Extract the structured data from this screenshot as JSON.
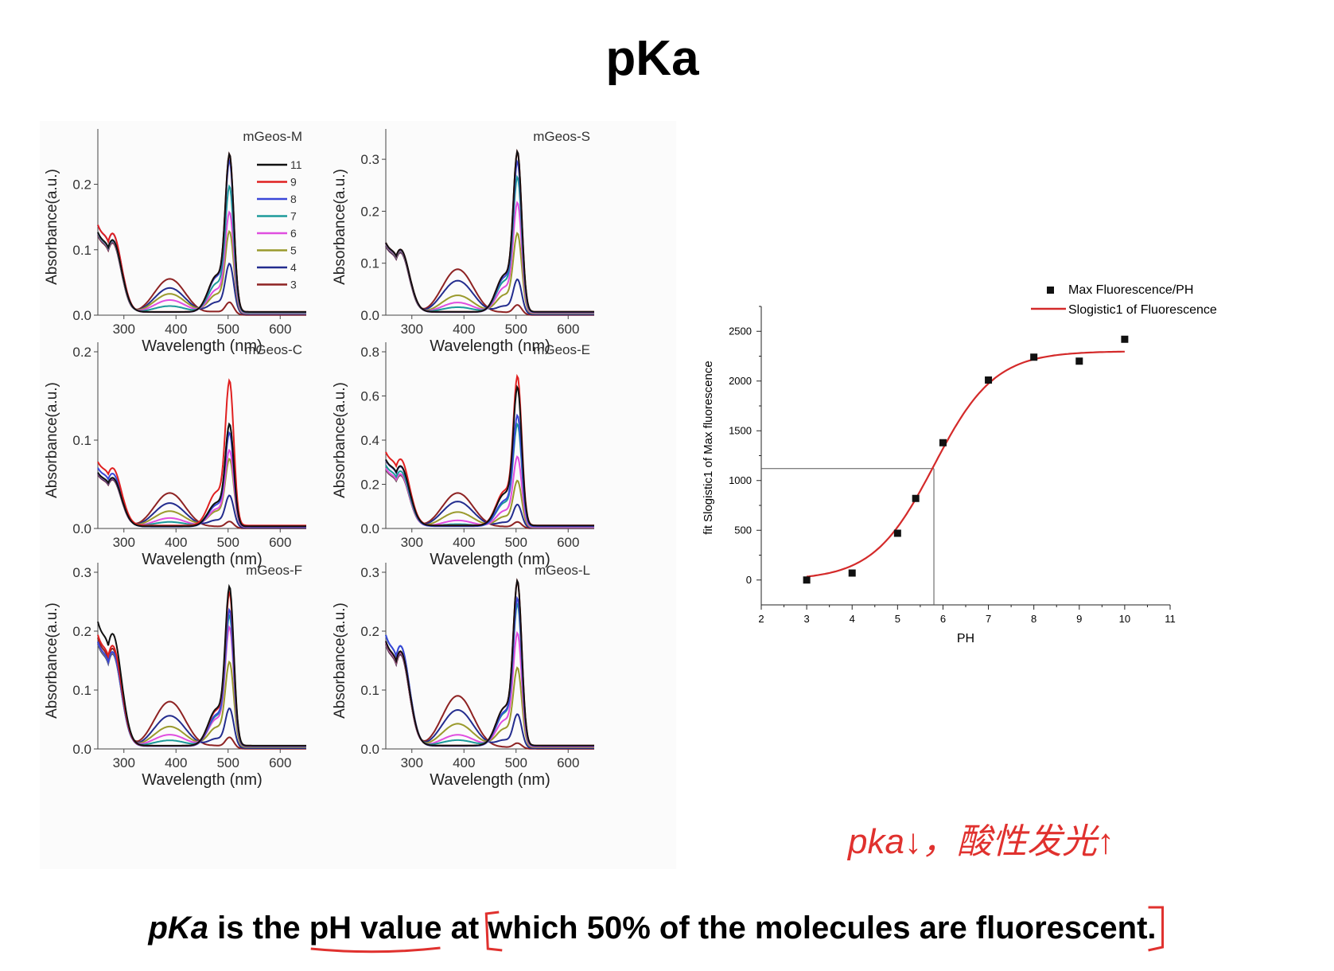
{
  "slide": {
    "title": "pKa",
    "caption": {
      "term": "pKa",
      "part1": " is the ",
      "highlight": "pH value",
      "part2": " at ",
      "rest": "which 50% of the molecules are fluorescent."
    },
    "handwritten_note": "pka↓，酸性发光↑",
    "annotation_color": "#e0312e"
  },
  "spectra_legend": {
    "labels": [
      "11",
      "9",
      "8",
      "7",
      "6",
      "5",
      "4",
      "3"
    ],
    "colors": [
      "#111111",
      "#e02020",
      "#3a46d8",
      "#1c9a9a",
      "#e04ee0",
      "#9a9a2c",
      "#232c8e",
      "#8e2222"
    ]
  },
  "chart_data": [
    {
      "type": "line",
      "title": "mGeos-M",
      "xlabel": "Wavelength (nm)",
      "ylabel": "Absorbance(a.u.)",
      "xlim": [
        250,
        650
      ],
      "ylim": [
        0,
        0.27
      ],
      "xticks": [
        300,
        400,
        500,
        600
      ],
      "yticks": [
        0.0,
        0.1,
        0.2
      ],
      "ytick_labels": [
        "0.0",
        "0.1",
        "0.2"
      ],
      "series": [
        {
          "name": "11",
          "peak_uv": 0.11,
          "peak_390": 0.0,
          "peak_505": 0.25
        },
        {
          "name": "9",
          "peak_uv": 0.12,
          "peak_390": 0.0,
          "peak_505": 0.25
        },
        {
          "name": "8",
          "peak_uv": 0.12,
          "peak_390": 0.0,
          "peak_505": 0.24
        },
        {
          "name": "7",
          "peak_uv": 0.11,
          "peak_390": 0.01,
          "peak_505": 0.2
        },
        {
          "name": "6",
          "peak_uv": 0.11,
          "peak_390": 0.02,
          "peak_505": 0.16
        },
        {
          "name": "5",
          "peak_uv": 0.11,
          "peak_390": 0.03,
          "peak_505": 0.13
        },
        {
          "name": "4",
          "peak_uv": 0.11,
          "peak_390": 0.04,
          "peak_505": 0.08
        },
        {
          "name": "3",
          "peak_uv": 0.11,
          "peak_390": 0.055,
          "peak_505": 0.02
        }
      ]
    },
    {
      "type": "line",
      "title": "mGeos-S",
      "xlabel": "Wavelength (nm)",
      "ylabel": "Absorbance(a.u.)",
      "xlim": [
        250,
        650
      ],
      "ylim": [
        0,
        0.34
      ],
      "xticks": [
        300,
        400,
        500,
        600
      ],
      "yticks": [
        0.0,
        0.1,
        0.2,
        0.3
      ],
      "ytick_labels": [
        "0.0",
        "0.1",
        "0.2",
        "0.3"
      ],
      "series": [
        {
          "name": "11",
          "peak_uv": 0.12,
          "peak_390": 0.0,
          "peak_505": 0.32
        },
        {
          "name": "9",
          "peak_uv": 0.12,
          "peak_390": 0.0,
          "peak_505": 0.32
        },
        {
          "name": "8",
          "peak_uv": 0.12,
          "peak_390": 0.0,
          "peak_505": 0.3
        },
        {
          "name": "7",
          "peak_uv": 0.12,
          "peak_390": 0.01,
          "peak_505": 0.27
        },
        {
          "name": "6",
          "peak_uv": 0.12,
          "peak_390": 0.02,
          "peak_505": 0.22
        },
        {
          "name": "5",
          "peak_uv": 0.12,
          "peak_390": 0.035,
          "peak_505": 0.16
        },
        {
          "name": "4",
          "peak_uv": 0.12,
          "peak_390": 0.065,
          "peak_505": 0.07
        },
        {
          "name": "3",
          "peak_uv": 0.12,
          "peak_390": 0.088,
          "peak_505": 0.02
        }
      ]
    },
    {
      "type": "line",
      "title": "mGeos-C",
      "xlabel": "Wavelength (nm)",
      "ylabel": "Absorbance(a.u.)",
      "xlim": [
        250,
        650
      ],
      "ylim": [
        0,
        0.2
      ],
      "xticks": [
        300,
        400,
        500,
        600
      ],
      "yticks": [
        0.0,
        0.1,
        0.2
      ],
      "ytick_labels": [
        "0.0",
        "0.1",
        "0.2"
      ],
      "series": [
        {
          "name": "11",
          "peak_uv": 0.055,
          "peak_390": 0.0,
          "peak_505": 0.12
        },
        {
          "name": "9",
          "peak_uv": 0.065,
          "peak_390": 0.0,
          "peak_505": 0.17
        },
        {
          "name": "8",
          "peak_uv": 0.06,
          "peak_390": 0.0,
          "peak_505": 0.11
        },
        {
          "name": "7",
          "peak_uv": 0.055,
          "peak_390": 0.005,
          "peak_505": 0.12
        },
        {
          "name": "6",
          "peak_uv": 0.055,
          "peak_390": 0.01,
          "peak_505": 0.09
        },
        {
          "name": "5",
          "peak_uv": 0.055,
          "peak_390": 0.018,
          "peak_505": 0.08
        },
        {
          "name": "4",
          "peak_uv": 0.055,
          "peak_390": 0.028,
          "peak_505": 0.038
        },
        {
          "name": "3",
          "peak_uv": 0.055,
          "peak_390": 0.04,
          "peak_505": 0.008
        }
      ]
    },
    {
      "type": "line",
      "title": "mGeos-E",
      "xlabel": "Wavelength (nm)",
      "ylabel": "Absorbance(a.u.)",
      "xlim": [
        250,
        650
      ],
      "ylim": [
        0,
        0.8
      ],
      "xticks": [
        300,
        400,
        500,
        600
      ],
      "yticks": [
        0.0,
        0.2,
        0.4,
        0.6,
        0.8
      ],
      "ytick_labels": [
        "0.0",
        "0.2",
        "0.4",
        "0.6",
        "0.8"
      ],
      "series": [
        {
          "name": "11",
          "peak_uv": 0.27,
          "peak_390": 0.0,
          "peak_505": 0.65
        },
        {
          "name": "9",
          "peak_uv": 0.3,
          "peak_390": 0.0,
          "peak_505": 0.7
        },
        {
          "name": "8",
          "peak_uv": 0.27,
          "peak_390": 0.0,
          "peak_505": 0.52
        },
        {
          "name": "7",
          "peak_uv": 0.25,
          "peak_390": 0.01,
          "peak_505": 0.48
        },
        {
          "name": "6",
          "peak_uv": 0.24,
          "peak_390": 0.03,
          "peak_505": 0.33
        },
        {
          "name": "5",
          "peak_uv": 0.24,
          "peak_390": 0.07,
          "peak_505": 0.22
        },
        {
          "name": "4",
          "peak_uv": 0.24,
          "peak_390": 0.12,
          "peak_505": 0.11
        },
        {
          "name": "3",
          "peak_uv": 0.24,
          "peak_390": 0.16,
          "peak_505": 0.03
        }
      ]
    },
    {
      "type": "line",
      "title": "mGeos-F",
      "xlabel": "Wavelength (nm)",
      "ylabel": "Absorbance(a.u.)",
      "xlim": [
        250,
        650
      ],
      "ylim": [
        0,
        0.3
      ],
      "xticks": [
        300,
        400,
        500,
        600
      ],
      "yticks": [
        0.0,
        0.1,
        0.2,
        0.3
      ],
      "ytick_labels": [
        "0.0",
        "0.1",
        "0.2",
        "0.3"
      ],
      "series": [
        {
          "name": "11",
          "peak_uv": 0.19,
          "peak_390": 0.0,
          "peak_505": 0.28
        },
        {
          "name": "9",
          "peak_uv": 0.17,
          "peak_390": 0.0,
          "peak_505": 0.27
        },
        {
          "name": "8",
          "peak_uv": 0.16,
          "peak_390": 0.0,
          "peak_505": 0.24
        },
        {
          "name": "7",
          "peak_uv": 0.16,
          "peak_390": 0.01,
          "peak_505": 0.23
        },
        {
          "name": "6",
          "peak_uv": 0.16,
          "peak_390": 0.02,
          "peak_505": 0.21
        },
        {
          "name": "5",
          "peak_uv": 0.16,
          "peak_390": 0.035,
          "peak_505": 0.15
        },
        {
          "name": "4",
          "peak_uv": 0.16,
          "peak_390": 0.055,
          "peak_505": 0.07
        },
        {
          "name": "3",
          "peak_uv": 0.17,
          "peak_390": 0.08,
          "peak_505": 0.02
        }
      ]
    },
    {
      "type": "line",
      "title": "mGeos-L",
      "xlabel": "Wavelength (nm)",
      "ylabel": "Absorbance(a.u.)",
      "xlim": [
        250,
        650
      ],
      "ylim": [
        0,
        0.3
      ],
      "xticks": [
        300,
        400,
        500,
        600
      ],
      "yticks": [
        0.0,
        0.1,
        0.2,
        0.3
      ],
      "ytick_labels": [
        "0.0",
        "0.1",
        "0.2",
        "0.3"
      ],
      "series": [
        {
          "name": "11",
          "peak_uv": 0.16,
          "peak_390": 0.0,
          "peak_505": 0.29
        },
        {
          "name": "9",
          "peak_uv": 0.16,
          "peak_390": 0.0,
          "peak_505": 0.29
        },
        {
          "name": "8",
          "peak_uv": 0.17,
          "peak_390": 0.0,
          "peak_505": 0.26
        },
        {
          "name": "7",
          "peak_uv": 0.17,
          "peak_390": 0.01,
          "peak_505": 0.25
        },
        {
          "name": "6",
          "peak_uv": 0.16,
          "peak_390": 0.02,
          "peak_505": 0.2
        },
        {
          "name": "5",
          "peak_uv": 0.16,
          "peak_390": 0.04,
          "peak_505": 0.14
        },
        {
          "name": "4",
          "peak_uv": 0.16,
          "peak_390": 0.065,
          "peak_505": 0.06
        },
        {
          "name": "3",
          "peak_uv": 0.16,
          "peak_390": 0.09,
          "peak_505": 0.01
        }
      ]
    },
    {
      "type": "scatter",
      "title": "",
      "xlabel": "PH",
      "ylabel": "fit Slogistic1 of Max fluorescence",
      "xlim": [
        2,
        11
      ],
      "ylim": [
        -250,
        2750
      ],
      "xticks": [
        2,
        3,
        4,
        5,
        6,
        7,
        8,
        9,
        10,
        11
      ],
      "yticks": [
        0,
        500,
        1000,
        1500,
        2000,
        2500
      ],
      "legend": [
        "Max Fluorescence/PH",
        "Slogistic1 of Fluorescence"
      ],
      "points": {
        "x": [
          3,
          4,
          5,
          5.4,
          6,
          7,
          8,
          9,
          10
        ],
        "y": [
          0,
          70,
          470,
          820,
          1380,
          2010,
          2240,
          2200,
          2420
        ]
      },
      "fit": {
        "A": 2300,
        "xc": 5.8,
        "k": 1.5
      },
      "guide": {
        "pKa": 5.8,
        "half_max": 1120
      },
      "colors": {
        "points": "#111111",
        "fit": "#d42a2a"
      }
    }
  ]
}
